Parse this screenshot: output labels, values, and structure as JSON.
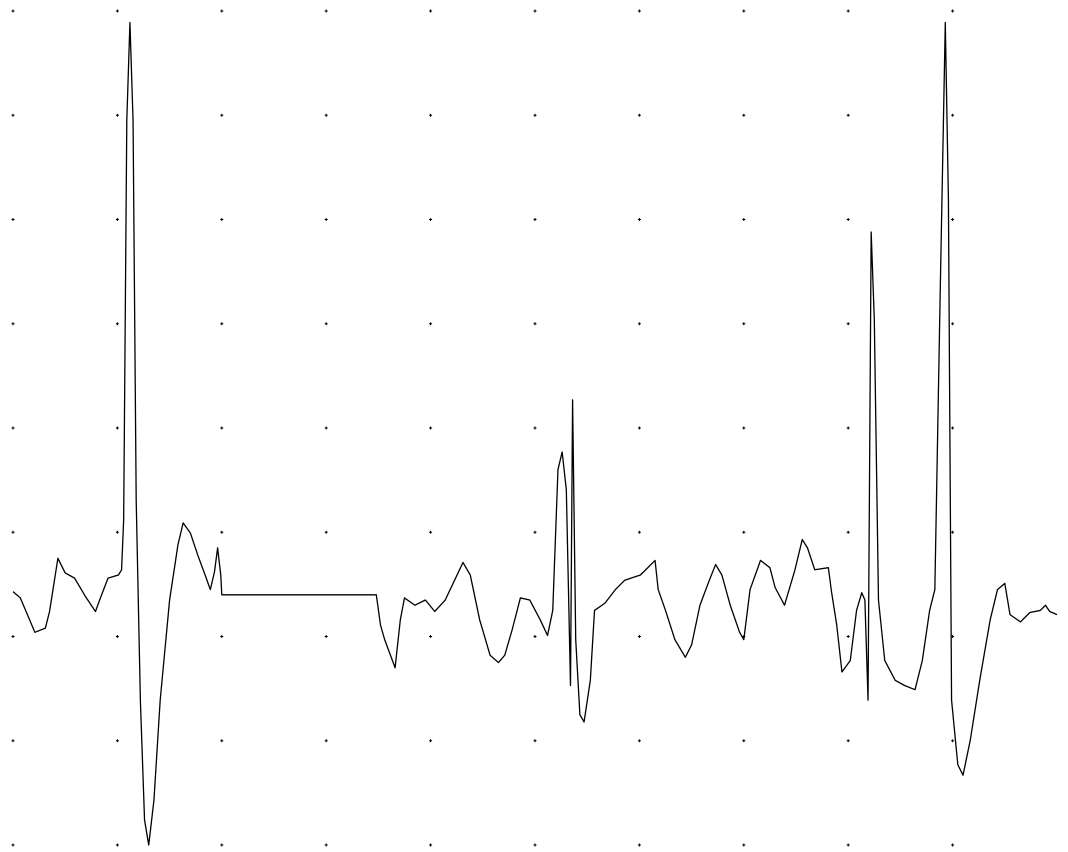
{
  "chart_data": {
    "type": "line",
    "color": "#000000",
    "grid": true,
    "xlim": [
      0,
      10
    ],
    "ylim": [
      0,
      8
    ],
    "xticks": [
      0,
      1,
      2,
      3,
      4,
      5,
      6,
      7,
      8,
      9
    ],
    "yticks": [
      0,
      1,
      2,
      3,
      4,
      5,
      6,
      7,
      8
    ],
    "x": [
      0,
      0.07,
      0.21,
      0.31,
      0.35,
      0.43,
      0.5,
      0.59,
      0.69,
      0.79,
      0.83,
      0.91,
      1.01,
      1.04,
      1.06,
      1.09,
      1.12,
      1.15,
      1.18,
      1.22,
      1.26,
      1.3,
      1.35,
      1.41,
      1.5,
      1.58,
      1.63,
      1.7,
      1.77,
      1.84,
      1.89,
      1.93,
      1.96,
      1.99,
      2.0,
      3.48,
      3.52,
      3.56,
      3.66,
      3.71,
      3.75,
      3.85,
      3.95,
      4.04,
      4.14,
      4.23,
      4.31,
      4.38,
      4.47,
      4.57,
      4.65,
      4.71,
      4.78,
      4.86,
      4.95,
      5.05,
      5.12,
      5.17,
      5.22,
      5.26,
      5.3,
      5.34,
      5.36,
      5.39,
      5.43,
      5.47,
      5.53,
      5.57,
      5.67,
      5.77,
      5.86,
      6.01,
      6.15,
      6.18,
      6.25,
      6.34,
      6.44,
      6.5,
      6.58,
      6.67,
      6.73,
      6.79,
      6.87,
      6.96,
      7.0,
      7.06,
      7.16,
      7.25,
      7.3,
      7.39,
      7.49,
      7.56,
      7.61,
      7.68,
      7.81,
      7.84,
      7.89,
      7.94,
      8.02,
      8.08,
      8.13,
      8.16,
      8.19,
      8.22,
      8.25,
      8.29,
      8.35,
      8.45,
      8.54,
      8.64,
      8.71,
      8.78,
      8.83,
      8.88,
      8.93,
      8.96,
      8.99,
      9.05,
      9.1,
      9.17,
      9.26,
      9.36,
      9.43,
      9.5,
      9.55,
      9.65,
      9.74,
      9.84,
      9.89,
      9.93,
      10
    ],
    "values": [
      2.43,
      2.37,
      2.04,
      2.08,
      2.24,
      2.75,
      2.61,
      2.56,
      2.39,
      2.24,
      2.35,
      2.56,
      2.59,
      2.64,
      3.12,
      6.95,
      7.89,
      6.95,
      3.31,
      1.39,
      0.24,
      0,
      0.43,
      1.39,
      2.35,
      2.88,
      3.09,
      2.99,
      2.78,
      2.59,
      2.45,
      2.62,
      2.85,
      2.59,
      2.4,
      2.4,
      2.11,
      1.97,
      1.7,
      2.16,
      2.37,
      2.3,
      2.35,
      2.24,
      2.35,
      2.54,
      2.71,
      2.59,
      2.16,
      1.82,
      1.75,
      1.82,
      2.06,
      2.37,
      2.35,
      2.16,
      2.01,
      2.25,
      3.6,
      3.77,
      3.41,
      1.53,
      4.27,
      1.97,
      1.25,
      1.18,
      1.58,
      2.25,
      2.32,
      2.45,
      2.54,
      2.59,
      2.73,
      2.45,
      2.25,
      1.97,
      1.8,
      1.92,
      2.3,
      2.54,
      2.69,
      2.59,
      2.3,
      2.04,
      1.97,
      2.45,
      2.73,
      2.66,
      2.47,
      2.3,
      2.64,
      2.93,
      2.85,
      2.64,
      2.66,
      2.43,
      2.11,
      1.66,
      1.77,
      2.25,
      2.42,
      2.35,
      1.39,
      5.88,
      5.04,
      2.35,
      1.77,
      1.58,
      1.53,
      1.49,
      1.77,
      2.25,
      2.45,
      5.23,
      7.89,
      6.19,
      1.39,
      0.77,
      0.67,
      1.01,
      1.58,
      2.16,
      2.45,
      2.51,
      2.21,
      2.14,
      2.23,
      2.25,
      2.3,
      2.24,
      2.21
    ]
  }
}
